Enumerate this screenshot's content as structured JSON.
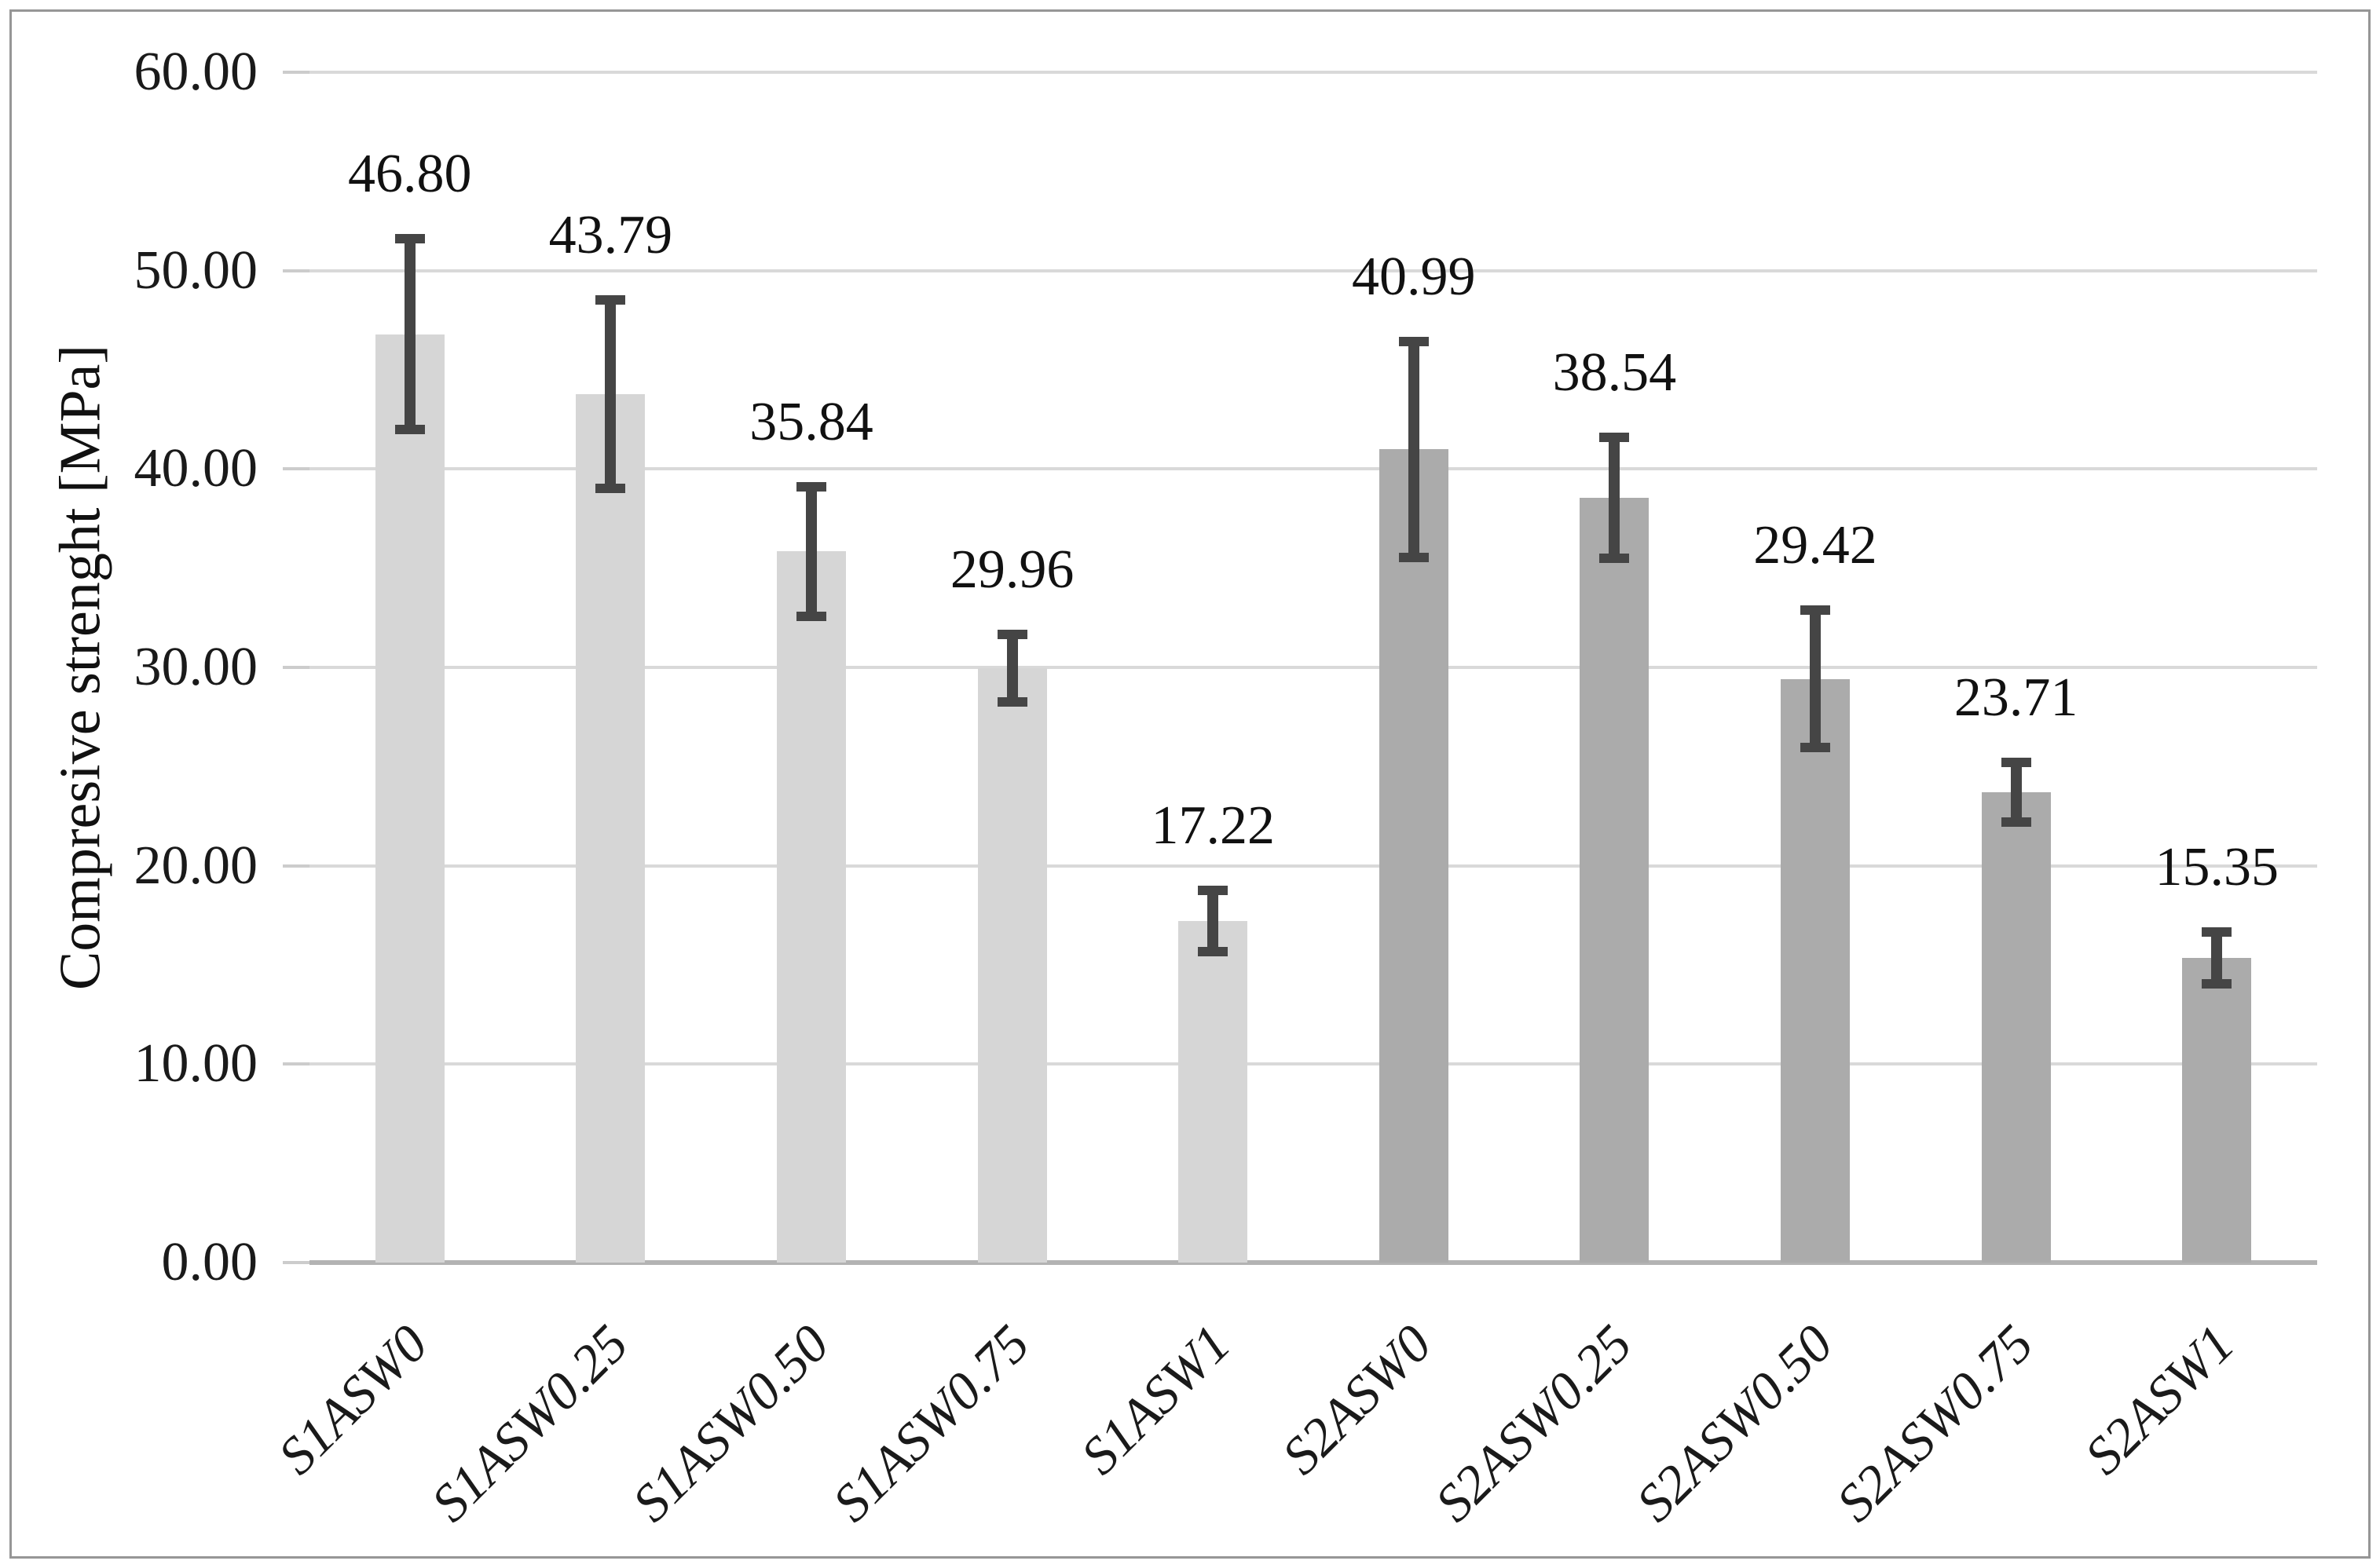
{
  "figure": {
    "background": "#ffffff",
    "border_color": "#969696"
  },
  "chart_data": {
    "type": "bar",
    "title": "",
    "xlabel": "",
    "ylabel": "Compresive strenght [MPa]",
    "ylim": [
      0,
      60
    ],
    "ytick_step": 10,
    "ytick_labels": [
      "0.00",
      "10.00",
      "20.00",
      "30.00",
      "40.00",
      "50.00",
      "60.00"
    ],
    "grid": true,
    "legend": "none",
    "categories": [
      "S1ASW0",
      "S1ASW0.25",
      "S1ASW0.50",
      "S1ASW0.75",
      "S1ASW1",
      "S2ASW0",
      "S2ASW0.25",
      "S2ASW0.50",
      "S2ASW0.75",
      "S2ASW1"
    ],
    "values": [
      46.8,
      43.79,
      35.84,
      29.96,
      17.22,
      40.99,
      38.54,
      29.42,
      23.71,
      15.35
    ],
    "error_bars": [
      4.8,
      4.75,
      3.25,
      1.7,
      1.55,
      5.45,
      3.05,
      3.45,
      1.5,
      1.3
    ],
    "data_labels": [
      "46.80",
      "43.79",
      "35.84",
      "29.96",
      "17.22",
      "40.99",
      "38.54",
      "29.42",
      "23.71",
      "15.35"
    ],
    "bar_group_of_category": [
      "series1",
      "series1",
      "series1",
      "series1",
      "series1",
      "series2",
      "series2",
      "series2",
      "series2",
      "series2"
    ],
    "colors": {
      "series1_fill": "#d6d6d6",
      "series2_fill": "#ababab",
      "error_bar": "#454545",
      "gridline": "#d9d9d9",
      "axis_line": "#b3b3b3",
      "text": "#1a1a1a"
    }
  }
}
